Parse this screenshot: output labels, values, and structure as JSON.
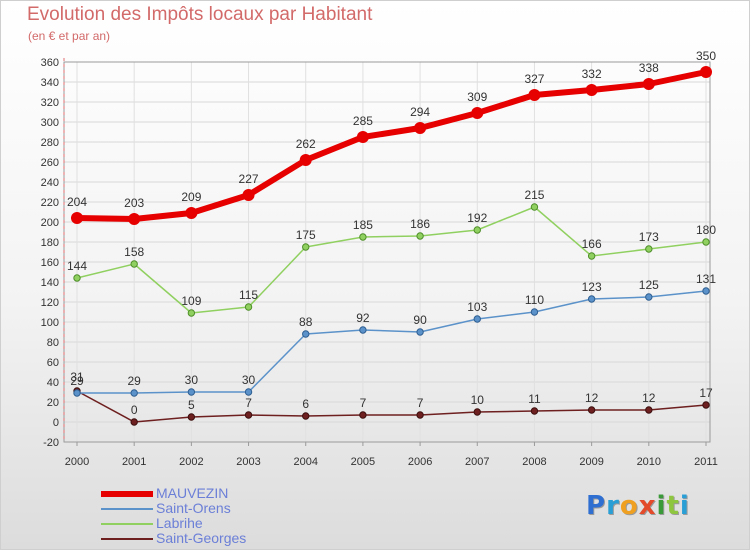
{
  "header": {
    "title": "Evolution des Impôts locaux par Habitant",
    "subtitle": "(en € et par an)"
  },
  "brand": {
    "text": "Proxiti",
    "letters": [
      {
        "char": "P",
        "color": "#2f6fd1"
      },
      {
        "char": "r",
        "color": "#2a9fd6"
      },
      {
        "char": "o",
        "color": "#f0a020"
      },
      {
        "char": "x",
        "color": "#e24a2a"
      },
      {
        "char": "i",
        "color": "#3a9a3a"
      },
      {
        "char": "t",
        "color": "#8ec63f"
      },
      {
        "char": "i",
        "color": "#2a9fd6"
      }
    ]
  },
  "chart_data": {
    "type": "line",
    "title": "Evolution des Impôts locaux par Habitant",
    "subtitle": "(en € et par an)",
    "xlabel": "",
    "ylabel": "",
    "x": [
      "2000",
      "2001",
      "2002",
      "2003",
      "2004",
      "2005",
      "2006",
      "2007",
      "2008",
      "2009",
      "2010",
      "2011"
    ],
    "ylim": [
      -20,
      360
    ],
    "yticks": [
      -20,
      0,
      20,
      40,
      60,
      80,
      100,
      120,
      140,
      160,
      180,
      200,
      220,
      240,
      260,
      280,
      300,
      320,
      340,
      360
    ],
    "grid": true,
    "legend_position": "bottom-left",
    "series": [
      {
        "name": "MAUVEZIN",
        "color": "#e60000",
        "values": [
          204,
          203,
          209,
          227,
          262,
          285,
          294,
          309,
          327,
          332,
          338,
          350
        ]
      },
      {
        "name": "Saint-Orens",
        "color": "#5b92c9",
        "values": [
          29,
          29,
          30,
          30,
          88,
          92,
          90,
          103,
          110,
          123,
          125,
          131
        ]
      },
      {
        "name": "Labrihe",
        "color": "#90d060",
        "values": [
          144,
          158,
          109,
          115,
          175,
          185,
          186,
          192,
          215,
          166,
          173,
          180
        ]
      },
      {
        "name": "Saint-Georges",
        "color": "#6e1f1f",
        "values": [
          31,
          0,
          5,
          7,
          6,
          7,
          7,
          10,
          11,
          12,
          12,
          17
        ]
      }
    ]
  }
}
